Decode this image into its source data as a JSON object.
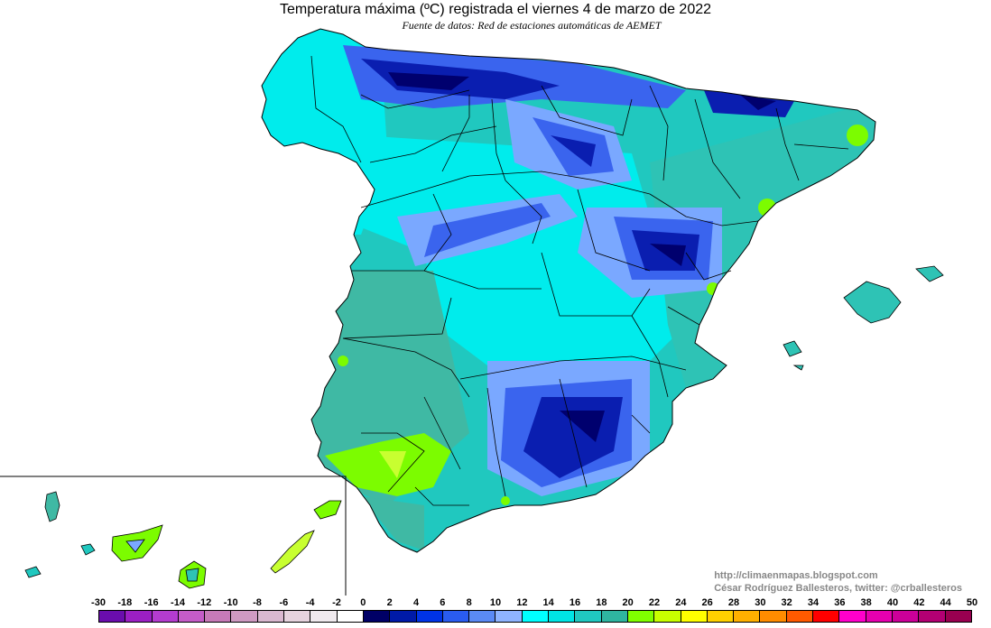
{
  "header": {
    "title": "Temperatura máxima (ºC) registrada el viernes 4 de marzo de 2022",
    "subtitle": "Fuente de datos: Red de estaciones automáticas de AEMET"
  },
  "credits": {
    "website": "http://climaenmapas.blogspot.com",
    "author": "César Rodríguez Ballesteros, twitter: @crballesteros"
  },
  "legend": {
    "ticks": [
      "-30",
      "-18",
      "-16",
      "-14",
      "-12",
      "-10",
      "-8",
      "-6",
      "-4",
      "-2",
      "0",
      "2",
      "4",
      "6",
      "8",
      "10",
      "12",
      "14",
      "16",
      "18",
      "20",
      "22",
      "24",
      "26",
      "28",
      "30",
      "32",
      "34",
      "36",
      "38",
      "40",
      "42",
      "44",
      "50"
    ],
    "colors": [
      "#6a0dad",
      "#9b1fc4",
      "#b43ccf",
      "#c55cc8",
      "#c77ab8",
      "#cf9ac2",
      "#dab8d0",
      "#e6d3de",
      "#f0eaee",
      "#ffffff",
      "#000066",
      "#001aa8",
      "#0033e6",
      "#2a5cf0",
      "#5a8af5",
      "#8fb4ff",
      "#00ffff",
      "#00e5e5",
      "#20c8c0",
      "#2fb5a0",
      "#80ff00",
      "#c8ff00",
      "#ffff00",
      "#ffd000",
      "#ffb000",
      "#ff8c00",
      "#ff5a00",
      "#ff0000",
      "#ff00cc",
      "#e600b0",
      "#cc0099",
      "#b30073",
      "#990050"
    ],
    "partial_tick_marker": "•"
  },
  "map": {
    "colors": {
      "cyan": "#00f0f0",
      "teal": "#20c8bf",
      "sea_green": "#3fb9a4",
      "light_blue": "#7aa8ff",
      "blue": "#3a64ee",
      "dark_blue": "#0a1eb0",
      "navy": "#00006e",
      "lime": "#7cfc00",
      "yellow_green": "#c8ff30"
    }
  }
}
